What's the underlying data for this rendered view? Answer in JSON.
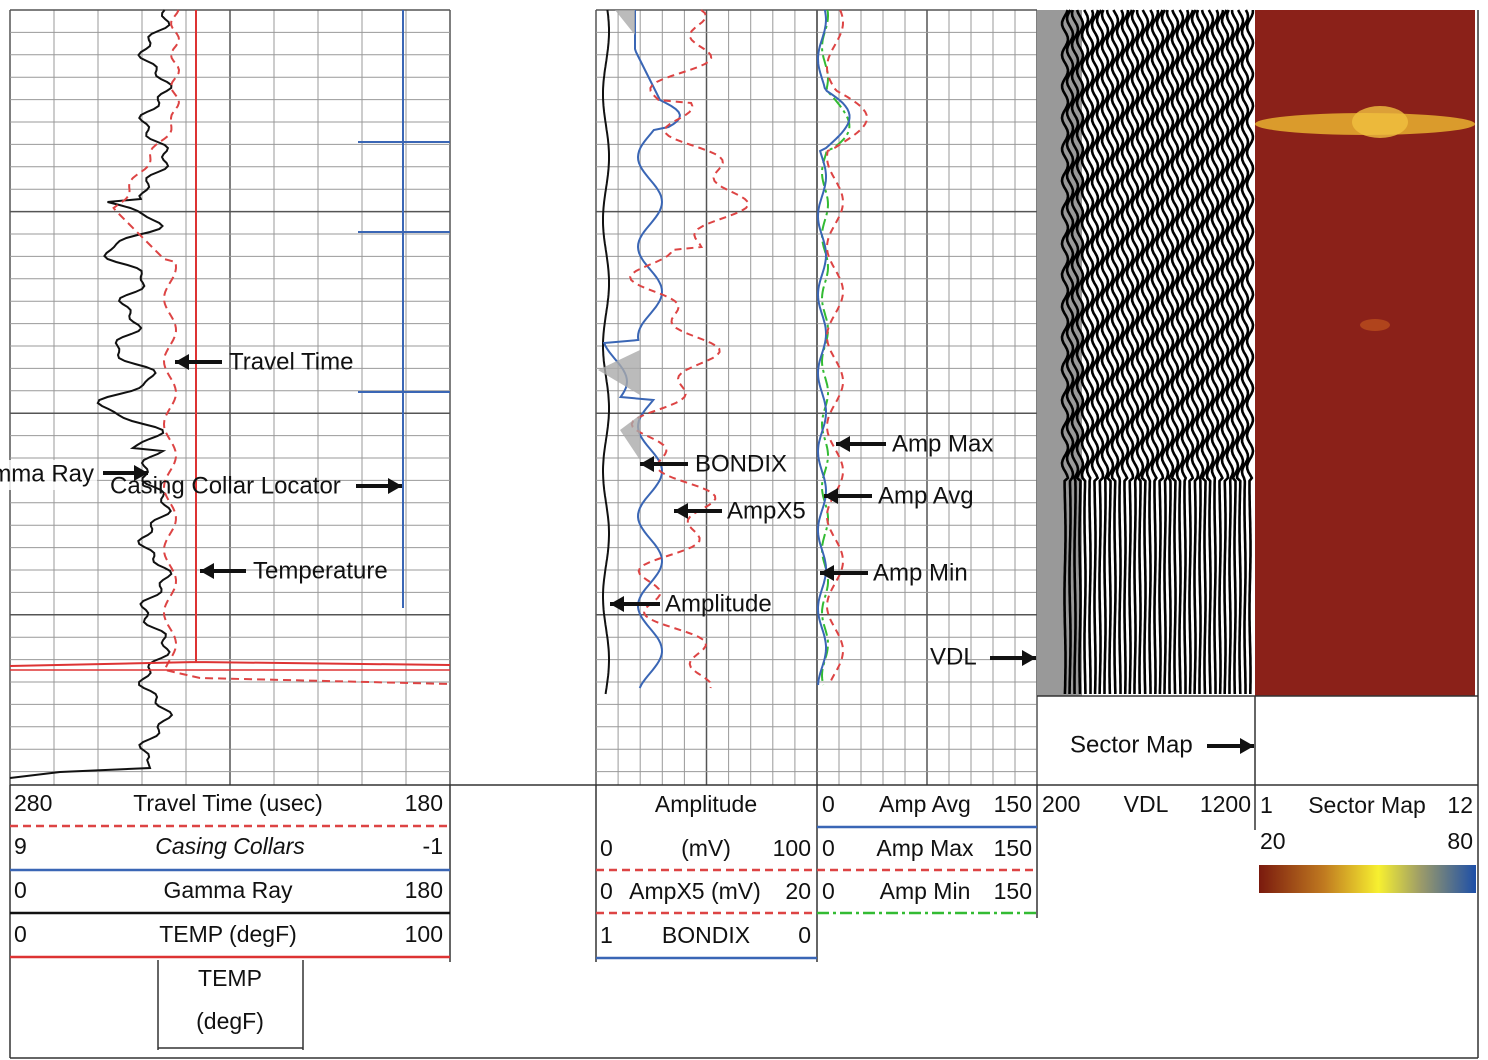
{
  "annotations": {
    "gamma_ray": "Gamma Ray",
    "casing_collar_locator": "Casing Collar Locator",
    "travel_time": "Travel Time",
    "temperature": "Temperature",
    "bondix": "BONDIX",
    "ampx5": "AmpX5",
    "amplitude": "Amplitude",
    "amp_max": "Amp Max",
    "amp_avg": "Amp Avg",
    "amp_min": "Amp Min",
    "vdl": "VDL",
    "sector_map": "Sector Map"
  },
  "header": {
    "track1": [
      [
        "280",
        "Travel Time (usec)",
        "180"
      ],
      [
        "9",
        "Casing Collars",
        "-1"
      ],
      [
        "0",
        "Gamma Ray",
        "180"
      ],
      [
        "0",
        "TEMP (degF)",
        "100"
      ]
    ],
    "temp_box": [
      "TEMP",
      "(degF)"
    ],
    "track2": {
      "title": "Amplitude",
      "rows": [
        [
          "0",
          "(mV)",
          "100"
        ],
        [
          "0",
          "AmpX5 (mV)",
          "20"
        ],
        [
          "1",
          "BONDIX",
          "0"
        ]
      ]
    },
    "track3": [
      [
        "0",
        "Amp Avg",
        "150"
      ],
      [
        "0",
        "Amp Max",
        "150"
      ],
      [
        "0",
        "Amp Min",
        "150"
      ]
    ],
    "vdl": [
      "200",
      "VDL",
      "1200"
    ],
    "sector_map": {
      "row1": [
        "1",
        "Sector Map",
        "12"
      ],
      "row2": [
        "20",
        "80"
      ]
    }
  }
}
